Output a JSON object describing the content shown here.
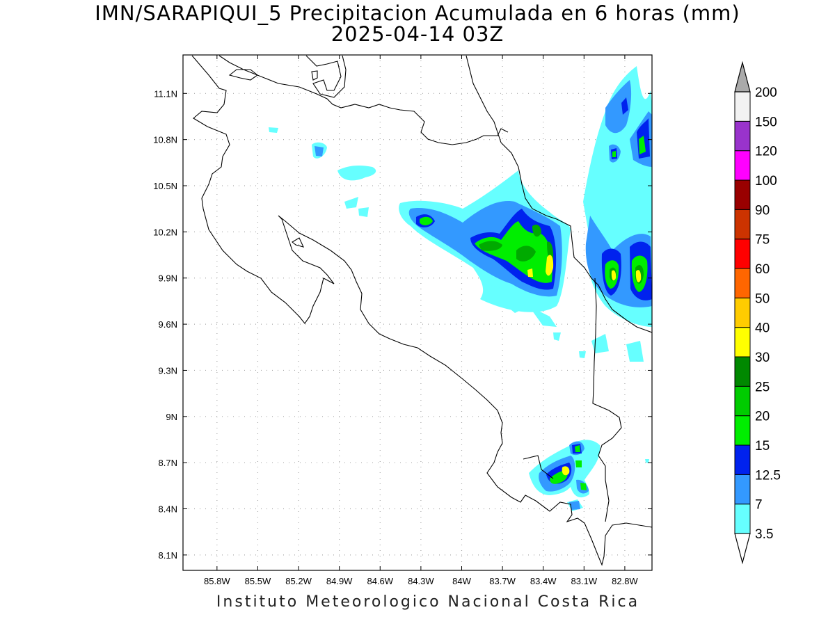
{
  "title": "IMN/SARAPIQUI_5 Precipitacion Acumulada en 6 horas (mm)",
  "subtitle": "2025-04-14 03Z",
  "credit": "Instituto Meteorologico Nacional Costa Rica",
  "map": {
    "lon_range": [
      -86.05,
      -82.6
    ],
    "lat_range": [
      8.0,
      11.35
    ],
    "lon_ticks": [
      -85.8,
      -85.5,
      -85.2,
      -84.9,
      -84.6,
      -84.3,
      -84.0,
      -83.7,
      -83.4,
      -83.1,
      -82.8
    ],
    "lon_tick_labels": [
      "85.8W",
      "85.5W",
      "85.2W",
      "84.9W",
      "84.6W",
      "84.3W",
      "84W",
      "83.7W",
      "83.4W",
      "83.1W",
      "82.8W"
    ],
    "lat_ticks": [
      8.1,
      8.4,
      8.7,
      9.0,
      9.3,
      9.6,
      9.9,
      10.2,
      10.5,
      10.8,
      11.1
    ],
    "lat_tick_labels": [
      "8.1N",
      "8.4N",
      "8.7N",
      "9N",
      "9.3N",
      "9.6N",
      "9.9N",
      "10.2N",
      "10.5N",
      "10.8N",
      "11.1N"
    ],
    "grid": "dotted"
  },
  "colorbar": {
    "units": "mm",
    "levels": [
      "3.5",
      "7",
      "12.5",
      "15",
      "20",
      "25",
      "30",
      "40",
      "50",
      "60",
      "75",
      "90",
      "100",
      "120",
      "150",
      "200"
    ],
    "colors": [
      "#ffffff",
      "#66ffff",
      "#3399ff",
      "#0022ee",
      "#00ee00",
      "#00cc00",
      "#008800",
      "#ffff00",
      "#ffcc00",
      "#ff6600",
      "#ff0000",
      "#cc3300",
      "#990000",
      "#ff00ff",
      "#9933cc",
      "#f2f2f2",
      "#aaaaaa"
    ],
    "over_color": "#aaaaaa"
  },
  "precip_cells": [
    {
      "lon": -83.35,
      "lat": 10.05,
      "mm": 25
    },
    {
      "lon": -83.22,
      "lat": 9.92,
      "mm": 40
    },
    {
      "lon": -83.38,
      "lat": 9.9,
      "mm": 40
    },
    {
      "lon": -83.7,
      "lat": 10.08,
      "mm": 20
    },
    {
      "lon": -84.18,
      "lat": 10.23,
      "mm": 20
    },
    {
      "lon": -82.83,
      "lat": 9.87,
      "mm": 40
    },
    {
      "lon": -82.7,
      "lat": 9.88,
      "mm": 40
    },
    {
      "lon": -82.72,
      "lat": 10.72,
      "mm": 20
    },
    {
      "lon": -82.83,
      "lat": 10.66,
      "mm": 20
    },
    {
      "lon": -83.14,
      "lat": 8.62,
      "mm": 40
    },
    {
      "lon": -83.03,
      "lat": 8.77,
      "mm": 20
    },
    {
      "lon": -83.02,
      "lat": 8.52,
      "mm": 20
    }
  ]
}
